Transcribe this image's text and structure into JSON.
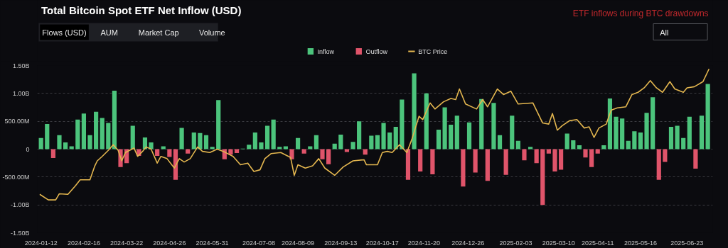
{
  "chart_data": {
    "type": "bar",
    "title": "Total Bitcoin Spot ETF Net Inflow (USD)",
    "annotations": [
      "ETF inflows during BTC drawdowns",
      "Flows (USD)",
      "AUM",
      "Market Cap",
      "Volume",
      "All"
    ],
    "x": [
      "2024-01-12",
      "2024-01-17",
      "2024-01-22",
      "2024-01-27",
      "2024-02-01",
      "2024-02-06",
      "2024-02-11",
      "2024-02-16",
      "2024-02-21",
      "2024-02-26",
      "2024-03-02",
      "2024-03-07",
      "2024-03-12",
      "2024-03-17",
      "2024-03-22",
      "2024-03-27",
      "2024-04-01",
      "2024-04-06",
      "2024-04-11",
      "2024-04-16",
      "2024-04-21",
      "2024-04-26",
      "2024-05-01",
      "2024-05-06",
      "2024-05-11",
      "2024-05-16",
      "2024-05-21",
      "2024-05-26",
      "2024-05-31",
      "2024-06-05",
      "2024-06-10",
      "2024-06-15",
      "2024-06-20",
      "2024-06-25",
      "2024-06-30",
      "2024-07-05",
      "2024-07-10",
      "2024-07-15",
      "2024-07-20",
      "2024-07-25",
      "2024-07-30",
      "2024-08-04",
      "2024-08-09",
      "2024-08-14",
      "2024-08-19",
      "2024-08-24",
      "2024-08-29",
      "2024-09-03",
      "2024-09-08",
      "2024-09-13",
      "2024-09-18",
      "2024-09-23",
      "2024-09-28",
      "2024-10-03",
      "2024-10-08",
      "2024-10-13",
      "2024-10-18",
      "2024-10-23",
      "2024-10-28",
      "2024-11-02",
      "2024-11-07",
      "2024-11-12",
      "2024-11-17",
      "2024-11-22",
      "2024-11-27",
      "2024-12-02",
      "2024-12-07",
      "2024-12-12",
      "2024-12-17",
      "2024-12-22",
      "2024-12-27",
      "2025-01-01",
      "2025-01-06",
      "2025-01-11",
      "2025-01-16",
      "2025-01-21",
      "2025-01-26",
      "2025-01-31",
      "2025-02-05",
      "2025-02-10",
      "2025-02-15",
      "2025-02-20",
      "2025-02-25",
      "2025-03-02",
      "2025-03-07",
      "2025-03-12",
      "2025-03-17",
      "2025-03-22",
      "2025-03-27",
      "2025-04-01",
      "2025-04-06",
      "2025-04-11",
      "2025-04-16",
      "2025-04-21",
      "2025-04-26",
      "2025-05-01",
      "2025-05-06",
      "2025-05-11",
      "2025-05-16",
      "2025-05-21",
      "2025-05-26",
      "2025-05-31",
      "2025-06-05",
      "2025-06-10",
      "2025-06-15",
      "2025-06-20",
      "2025-06-25",
      "2025-06-30",
      "2025-07-05",
      "2025-07-10"
    ],
    "series": [
      {
        "name": "Inflow",
        "color": "#4cc47c",
        "values": [
          200000000.0,
          450000000.0,
          null,
          250000000.0,
          120000000.0,
          50000000.0,
          530000000.0,
          640000000.0,
          250000000.0,
          670000000.0,
          560000000.0,
          470000000.0,
          1050000000.0,
          null,
          null,
          420000000.0,
          null,
          210000000.0,
          120000000.0,
          null,
          50000000.0,
          null,
          null,
          380000000.0,
          null,
          300000000.0,
          290000000.0,
          250000000.0,
          40000000.0,
          880000000.0,
          null,
          null,
          null,
          10000000.0,
          80000000.0,
          300000000.0,
          120000000.0,
          420000000.0,
          530000000.0,
          40000000.0,
          50000000.0,
          null,
          200000000.0,
          null,
          50000000.0,
          250000000.0,
          null,
          null,
          100000000.0,
          260000000.0,
          null,
          130000000.0,
          500000000.0,
          null,
          240000000.0,
          250000000.0,
          470000000.0,
          300000000.0,
          400000000.0,
          890000000.0,
          null,
          1360000000.0,
          null,
          1000000000.0,
          null,
          350000000.0,
          750000000.0,
          440000000.0,
          600000000.0,
          null,
          480000000.0,
          null,
          900000000.0,
          null,
          830000000.0,
          250000000.0,
          null,
          600000000.0,
          150000000.0,
          null,
          40000000.0,
          null,
          null,
          null,
          null,
          null,
          280000000.0,
          160000000.0,
          70000000.0,
          null,
          null,
          null,
          70000000.0,
          910000000.0,
          580000000.0,
          550000000.0,
          150000000.0,
          320000000.0,
          300000000.0,
          650000000.0,
          930000000.0,
          null,
          null,
          400000000.0,
          420000000.0,
          200000000.0,
          580000000.0,
          null,
          600000000.0,
          1170000000.0
        ]
      },
      {
        "name": "Outflow",
        "color": "#e0546a",
        "values": [
          null,
          null,
          -160000000.0,
          null,
          null,
          null,
          null,
          null,
          null,
          null,
          null,
          null,
          null,
          -320000000.0,
          -250000000.0,
          null,
          -120000000.0,
          null,
          null,
          -120000000.0,
          null,
          -140000000.0,
          -550000000.0,
          null,
          -80000000.0,
          null,
          null,
          null,
          null,
          null,
          -180000000.0,
          -100000000.0,
          -70000000.0,
          null,
          null,
          null,
          null,
          null,
          null,
          null,
          null,
          -180000000.0,
          null,
          -80000000.0,
          null,
          null,
          -180000000.0,
          -270000000.0,
          null,
          null,
          -50000000.0,
          null,
          null,
          -100000000.0,
          null,
          null,
          null,
          null,
          null,
          null,
          -550000000.0,
          null,
          -400000000.0,
          null,
          -450000000.0,
          null,
          null,
          null,
          null,
          -670000000.0,
          null,
          -420000000.0,
          null,
          -570000000.0,
          null,
          null,
          -460000000.0,
          null,
          null,
          -200000000.0,
          null,
          -250000000.0,
          -1000000000.0,
          -80000000.0,
          -400000000.0,
          -370000000.0,
          null,
          null,
          null,
          -150000000.0,
          -320000000.0,
          -80000000.0,
          null,
          null,
          null,
          null,
          null,
          null,
          null,
          null,
          null,
          -550000000.0,
          -230000000.0,
          null,
          null,
          null,
          null,
          -350000000.0,
          null,
          null
        ]
      },
      {
        "name": "BTC Price",
        "type": "line",
        "color": "#e3b64f",
        "x": [
          "2024-01-11",
          "2024-01-18",
          "2024-01-24",
          "2024-01-27",
          "2024-02-03",
          "2024-02-09",
          "2024-02-13",
          "2024-02-21",
          "2024-02-25",
          "2024-02-27",
          "2024-03-02",
          "2024-03-08",
          "2024-03-11",
          "2024-03-15",
          "2024-03-18",
          "2024-03-21",
          "2024-03-28",
          "2024-03-31",
          "2024-04-04",
          "2024-04-07",
          "2024-04-11",
          "2024-04-16",
          "2024-04-19",
          "2024-04-24",
          "2024-04-30",
          "2024-05-04",
          "2024-05-08",
          "2024-05-13",
          "2024-05-19",
          "2024-05-23",
          "2024-05-29",
          "2024-06-04",
          "2024-06-09",
          "2024-06-17",
          "2024-06-23",
          "2024-06-29",
          "2024-07-04",
          "2024-07-09",
          "2024-07-13",
          "2024-07-18",
          "2024-07-26",
          "2024-08-03",
          "2024-08-06",
          "2024-08-09",
          "2024-08-15",
          "2024-08-21",
          "2024-08-26",
          "2024-08-31",
          "2024-09-08",
          "2024-09-15",
          "2024-09-23",
          "2024-10-02",
          "2024-10-04",
          "2024-10-13",
          "2024-10-17",
          "2024-10-21",
          "2024-10-25",
          "2024-10-31",
          "2024-11-06",
          "2024-11-10",
          "2024-11-16",
          "2024-11-19",
          "2024-11-25",
          "2024-11-29",
          "2024-12-06",
          "2024-12-12",
          "2024-12-16",
          "2024-12-19",
          "2024-12-24",
          "2025-01-02",
          "2025-01-07",
          "2025-01-11",
          "2025-01-19",
          "2025-01-24",
          "2025-01-30",
          "2025-02-05",
          "2025-02-17",
          "2025-02-25",
          "2025-03-02",
          "2025-03-05",
          "2025-03-09",
          "2025-03-13",
          "2025-03-19",
          "2025-03-25",
          "2025-03-31",
          "2025-04-04",
          "2025-04-08",
          "2025-04-12",
          "2025-04-18",
          "2025-04-22",
          "2025-04-27",
          "2025-05-04",
          "2025-05-09",
          "2025-05-14",
          "2025-05-19",
          "2025-05-24",
          "2025-05-29",
          "2025-06-03",
          "2025-06-09",
          "2025-06-13",
          "2025-06-20",
          "2025-06-23",
          "2025-06-29",
          "2025-07-06",
          "2025-07-11"
        ],
        "values": [
          -810000000.0,
          -910000000.0,
          -910000000.0,
          -800000000.0,
          -810000000.0,
          -660000000.0,
          -550000000.0,
          -550000000.0,
          -300000000.0,
          -210000000.0,
          -130000000.0,
          0,
          80000000.0,
          -20000000.0,
          -210000000.0,
          -60000000.0,
          20000000.0,
          -130000000.0,
          -40000000.0,
          40000000.0,
          0,
          -250000000.0,
          -130000000.0,
          -170000000.0,
          -340000000.0,
          -170000000.0,
          -230000000.0,
          -170000000.0,
          40000000.0,
          -40000000.0,
          -60000000.0,
          0,
          -40000000.0,
          -130000000.0,
          -280000000.0,
          -250000000.0,
          -400000000.0,
          -370000000.0,
          -170000000.0,
          -80000000.0,
          -60000000.0,
          -150000000.0,
          -470000000.0,
          -280000000.0,
          -340000000.0,
          -300000000.0,
          -170000000.0,
          -340000000.0,
          -470000000.0,
          -320000000.0,
          -210000000.0,
          -190000000.0,
          -280000000.0,
          -280000000.0,
          -60000000.0,
          -40000000.0,
          -60000000.0,
          80000000.0,
          -60000000.0,
          170000000.0,
          590000000.0,
          530000000.0,
          830000000.0,
          720000000.0,
          850000000.0,
          910000000.0,
          890000000.0,
          1080000000.0,
          810000000.0,
          720000000.0,
          890000000.0,
          760000000.0,
          1080000000.0,
          980000000.0,
          1040000000.0,
          810000000.0,
          830000000.0,
          470000000.0,
          450000000.0,
          640000000.0,
          340000000.0,
          420000000.0,
          510000000.0,
          530000000.0,
          380000000.0,
          400000000.0,
          210000000.0,
          380000000.0,
          450000000.0,
          700000000.0,
          740000000.0,
          760000000.0,
          980000000.0,
          1020000000.0,
          1100000000.0,
          1230000000.0,
          1100000000.0,
          1020000000.0,
          1210000000.0,
          1080000000.0,
          1020000000.0,
          1100000000.0,
          1120000000.0,
          1210000000.0,
          1440000000.0
        ]
      }
    ],
    "xlim": [
      "2024-01-09",
      "2025-07-14"
    ],
    "xticks": [
      "2024-01-12",
      "2024-02-16",
      "2024-03-22",
      "2024-04-26",
      "2024-05-31",
      "2024-07-08",
      "2024-08-09",
      "2024-09-13",
      "2024-10-17",
      "2024-11-20",
      "2024-12-26",
      "2025-02-03",
      "2025-03-10",
      "2025-04-11",
      "2025-05-16",
      "2025-06-23"
    ],
    "ylim": [
      -1500000000.0,
      1500000000.0
    ],
    "yticks": [
      {
        "value": -1500000000.0,
        "label": "-1.50B"
      },
      {
        "value": -1000000000.0,
        "label": "-1.00B"
      },
      {
        "value": -500000000.0,
        "label": "-500.00M"
      },
      0,
      {
        "value": 500000000.0,
        "label": "500.00M"
      },
      {
        "value": 1000000000.0,
        "label": "1.00B"
      },
      {
        "value": 1500000000.0,
        "label": "1.50B"
      }
    ],
    "grid": "y",
    "legend": "top"
  }
}
